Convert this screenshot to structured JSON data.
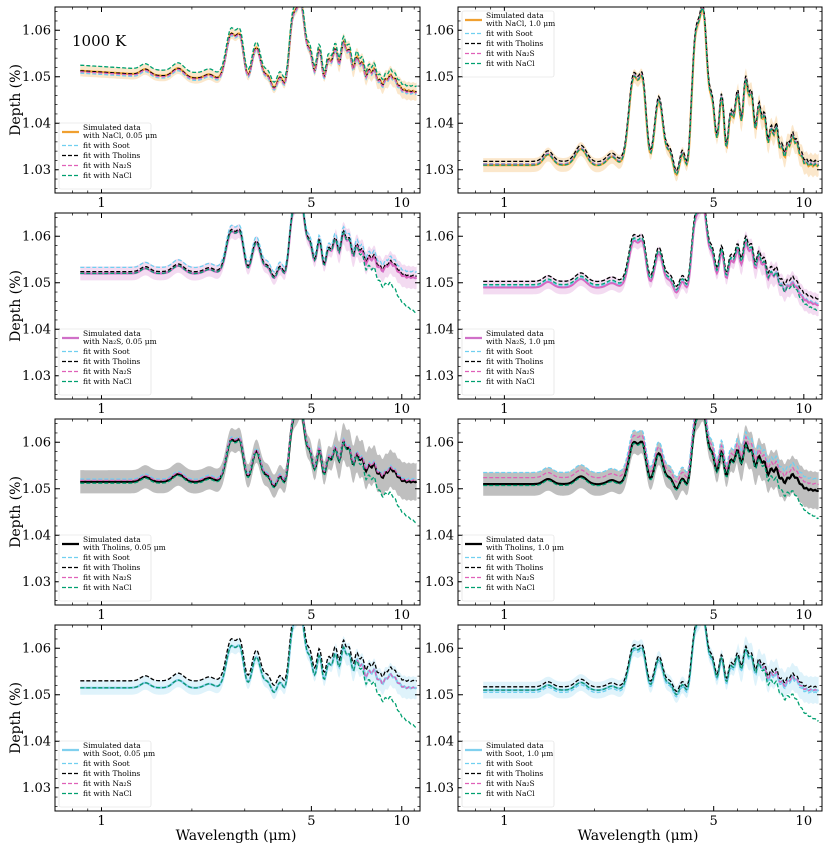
{
  "figure": {
    "temperature_label": "1000 K",
    "xlabel": "Wavelength (μm)",
    "ylabel": "Depth (%)",
    "x_scale": "log",
    "xlim": [
      0.7,
      11.5
    ],
    "ylim": [
      1.025,
      1.065
    ],
    "x_ticks": [
      1,
      5,
      10
    ],
    "y_ticks": [
      1.03,
      1.04,
      1.05,
      1.06
    ],
    "colors": {
      "NaCl_data": "#f0a030",
      "Na2S_data": "#d070c8",
      "Tholins_data": "#000000",
      "Soot_data": "#80d0ee",
      "fit_Soot": "#70d0f0",
      "fit_Tholins": "#000000",
      "fit_Na2S": "#e060b8",
      "fit_NaCl": "#00a070"
    },
    "legend_fits": [
      "fit with Soot",
      "fit with Tholins",
      "fit with Na₂S",
      "fit with NaCl"
    ],
    "fit_keys": [
      "fit_Soot",
      "fit_Tholins",
      "fit_Na2S",
      "fit_NaCl"
    ]
  },
  "chart_data": [
    {
      "type": "line",
      "panel": "row1-left",
      "data_label": [
        "Simulated data",
        "with NaCl, 0.05 μm"
      ],
      "data_key": "NaCl_data",
      "legend_pos": "bottom-left",
      "baseline": 1.051,
      "tilt": -0.004,
      "ir": 0.0,
      "amp": 1.0,
      "spread": 0.0012,
      "series": [
        {
          "name": "Simulated data"
        },
        {
          "name": "fit with Soot",
          "offset": -0.0005
        },
        {
          "name": "fit with Tholins",
          "offset": 0.0
        },
        {
          "name": "fit with Na₂S",
          "offset": -0.0002
        },
        {
          "name": "fit with NaCl",
          "offset": 0.0012
        }
      ]
    },
    {
      "type": "line",
      "panel": "row1-right",
      "data_label": [
        "Simulated data",
        "with NaCl, 1.0 μm"
      ],
      "data_key": "NaCl_data",
      "legend_pos": "top-left",
      "baseline": 1.031,
      "tilt": 0.0,
      "ir": 0.0,
      "amp": 1.9,
      "spread": 0.0015,
      "series": [
        {
          "name": "Simulated data"
        },
        {
          "name": "fit with Soot",
          "offset": 0.0003
        },
        {
          "name": "fit with Tholins",
          "offset": 0.0008
        },
        {
          "name": "fit with Na₂S",
          "offset": 0.0002
        },
        {
          "name": "fit with NaCl",
          "offset": 0.0
        }
      ]
    },
    {
      "type": "line",
      "panel": "row2-left",
      "data_label": [
        "Simulated data",
        "with Na₂S, 0.05 μm"
      ],
      "data_key": "Na2S_data",
      "legend_pos": "bottom-left",
      "baseline": 1.052,
      "tilt": 0.0,
      "ir": -0.001,
      "amp": 0.9,
      "spread": 0.0015,
      "series": [
        {
          "name": "Simulated data"
        },
        {
          "name": "fit with Soot",
          "offset": 0.0013
        },
        {
          "name": "fit with Tholins",
          "offset": 0.0004
        },
        {
          "name": "fit with Na₂S",
          "offset": 0.0
        },
        {
          "name": "fit with NaCl",
          "offset": 0.0,
          "ir_drop": -0.008
        }
      ]
    },
    {
      "type": "line",
      "panel": "row2-right",
      "data_label": [
        "Simulated data",
        "with Na₂S, 1.0 μm"
      ],
      "data_key": "Na2S_data",
      "legend_pos": "bottom-left",
      "baseline": 1.049,
      "tilt": 0.0,
      "ir": -0.004,
      "amp": 1.0,
      "spread": 0.0015,
      "series": [
        {
          "name": "Simulated data"
        },
        {
          "name": "fit with Soot",
          "offset": 0.0003
        },
        {
          "name": "fit with Tholins",
          "offset": 0.0013
        },
        {
          "name": "fit with Na₂S",
          "offset": 0.0
        },
        {
          "name": "fit with NaCl",
          "offset": 0.0006,
          "ir_drop": -0.002
        }
      ]
    },
    {
      "type": "line",
      "panel": "row3-left",
      "data_label": [
        "Simulated data",
        "with Tholins, 0.05 μm"
      ],
      "data_key": "Tholins_data",
      "legend_pos": "bottom-left",
      "baseline": 1.0515,
      "tilt": 0.0,
      "ir": 0.0,
      "amp": 0.9,
      "spread": 0.0025,
      "series": [
        {
          "name": "Simulated data"
        },
        {
          "name": "fit with Soot",
          "offset": 0.0006
        },
        {
          "name": "fit with Tholins",
          "offset": 0.0
        },
        {
          "name": "fit with Na₂S",
          "offset": 0.0003
        },
        {
          "name": "fit with NaCl",
          "offset": -0.0003,
          "ir_drop": -0.009
        }
      ]
    },
    {
      "type": "line",
      "panel": "row3-right",
      "data_label": [
        "Simulated data",
        "with Tholins, 1.0 μm"
      ],
      "data_key": "Tholins_data",
      "legend_pos": "bottom-left",
      "baseline": 1.051,
      "tilt": 0.0,
      "ir": -0.0015,
      "amp": 0.9,
      "spread": 0.0025,
      "series": [
        {
          "name": "Simulated data"
        },
        {
          "name": "fit with Soot",
          "offset": 0.0025
        },
        {
          "name": "fit with Tholins",
          "offset": 0.0
        },
        {
          "name": "fit with Na₂S",
          "offset": 0.0014
        },
        {
          "name": "fit with NaCl",
          "offset": -0.0003,
          "ir_drop": -0.006
        }
      ]
    },
    {
      "type": "line",
      "panel": "row4-left",
      "data_label": [
        "Simulated data",
        "with Soot, 0.05 μm"
      ],
      "data_key": "Soot_data",
      "legend_pos": "bottom-left",
      "baseline": 1.0515,
      "tilt": 0.0,
      "ir": 0.0,
      "amp": 0.9,
      "spread": 0.0015,
      "series": [
        {
          "name": "Simulated data"
        },
        {
          "name": "fit with Soot",
          "offset": 0.0
        },
        {
          "name": "fit with Tholins",
          "offset": 0.0015
        },
        {
          "name": "fit with Na₂S",
          "offset": 0.0
        },
        {
          "name": "fit with NaCl",
          "offset": 0.0,
          "ir_drop": -0.009
        }
      ]
    },
    {
      "type": "line",
      "panel": "row4-right",
      "data_label": [
        "Simulated data",
        "with Soot, 1.0 μm"
      ],
      "data_key": "Soot_data",
      "legend_pos": "bottom-left",
      "baseline": 1.051,
      "tilt": 0.0,
      "ir": 0.0,
      "amp": 0.9,
      "spread": 0.0018,
      "series": [
        {
          "name": "Simulated data"
        },
        {
          "name": "fit with Soot",
          "offset": -0.0005
        },
        {
          "name": "fit with Tholins",
          "offset": 0.0007
        },
        {
          "name": "fit with Na₂S",
          "offset": 0.0
        },
        {
          "name": "fit with NaCl",
          "offset": 0.0,
          "ir_drop": -0.007
        }
      ]
    }
  ]
}
